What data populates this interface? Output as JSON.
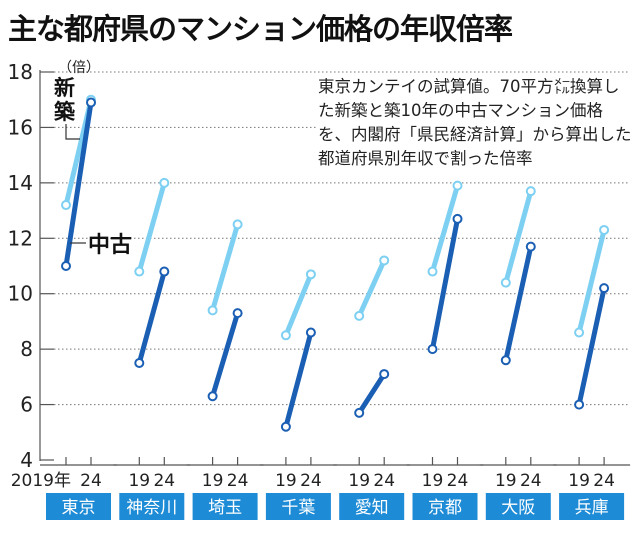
{
  "title": "主な都府県のマンション価格の年収倍率",
  "note": "東京カンテイの試算値。70平方㍍換算した新築と築10年の中古マンション価格を、内閣府「県民経済計算」から算出した都道府県別年収で割った倍率",
  "colors": {
    "new": "#7dd0f2",
    "used": "#1a5fb4",
    "label_bg": "#1e8bd6"
  },
  "chart_data": {
    "type": "line",
    "title": "主な都府県のマンション価格の年収倍率",
    "ylabel": "（倍）",
    "ylim": [
      4,
      18
    ],
    "yticks": [
      4,
      6,
      8,
      10,
      12,
      14,
      16,
      18
    ],
    "x_first_label": "2019年",
    "x_labels": [
      "19",
      "24"
    ],
    "x_last_label": "24",
    "categories": [
      "東京",
      "神奈川",
      "埼玉",
      "千葉",
      "愛知",
      "京都",
      "大阪",
      "兵庫"
    ],
    "series": [
      {
        "name": "新築",
        "values": [
          [
            13.2,
            17.0
          ],
          [
            10.8,
            14.0
          ],
          [
            9.4,
            12.5
          ],
          [
            8.5,
            10.7
          ],
          [
            9.2,
            11.2
          ],
          [
            10.8,
            13.9
          ],
          [
            10.4,
            13.7
          ],
          [
            8.6,
            12.3
          ]
        ]
      },
      {
        "name": "中古",
        "values": [
          [
            11.0,
            16.9
          ],
          [
            7.5,
            10.8
          ],
          [
            6.3,
            9.3
          ],
          [
            5.2,
            8.6
          ],
          [
            5.7,
            7.1
          ],
          [
            8.0,
            12.7
          ],
          [
            7.6,
            11.7
          ],
          [
            6.0,
            10.2
          ]
        ]
      }
    ],
    "grid": true
  }
}
